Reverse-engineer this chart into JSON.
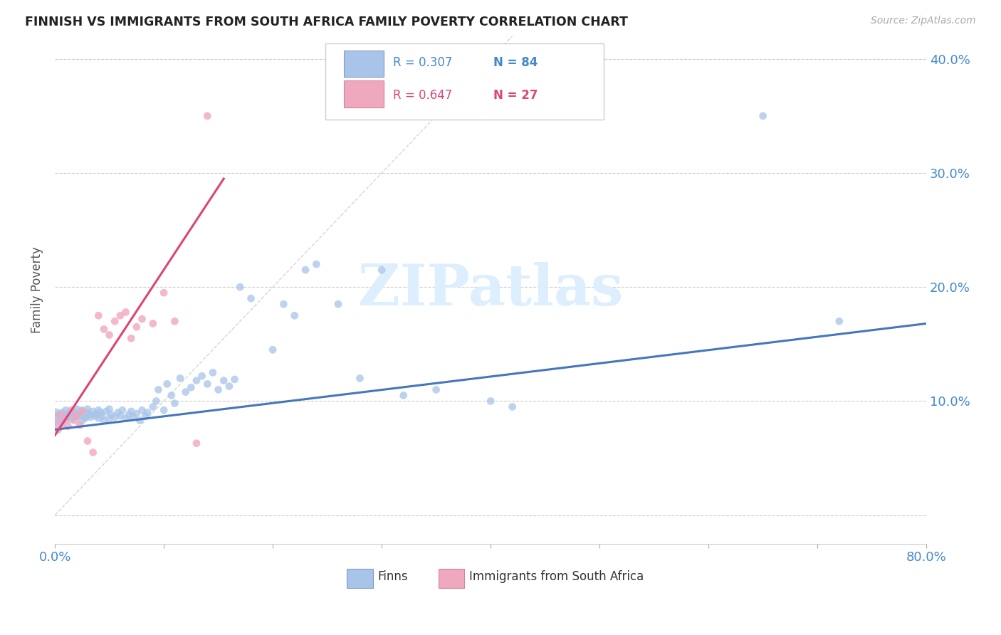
{
  "title": "FINNISH VS IMMIGRANTS FROM SOUTH AFRICA FAMILY POVERTY CORRELATION CHART",
  "source": "Source: ZipAtlas.com",
  "ylabel": "Family Poverty",
  "xlim": [
    0.0,
    0.8
  ],
  "ylim": [
    -0.025,
    0.42
  ],
  "x_tick_pos": [
    0.0,
    0.1,
    0.2,
    0.3,
    0.4,
    0.5,
    0.6,
    0.7,
    0.8
  ],
  "x_tick_labels": [
    "0.0%",
    "",
    "",
    "",
    "",
    "",
    "",
    "",
    "80.0%"
  ],
  "y_tick_pos": [
    0.0,
    0.1,
    0.2,
    0.3,
    0.4
  ],
  "y_tick_labels": [
    "",
    "10.0%",
    "20.0%",
    "30.0%",
    "40.0%"
  ],
  "finns_color": "#a8c4e8",
  "immigrants_color": "#f0a8be",
  "finns_line_color": "#4477bb",
  "immigrants_line_color": "#dd4477",
  "diagonal_color": "#cccccc",
  "watermark": "ZIPatlas",
  "background_color": "#ffffff",
  "finn_r": 0.307,
  "finn_n": 84,
  "imm_r": 0.647,
  "imm_n": 27,
  "legend_finn_text": "R = 0.307   N = 84",
  "legend_imm_text": "R = 0.647   N = 27",
  "legend_r_color": "#4477bb",
  "legend_n_color": "#dd4477",
  "finn_line_start_x": 0.0,
  "finn_line_start_y": 0.075,
  "finn_line_end_x": 0.8,
  "finn_line_end_y": 0.168,
  "imm_line_start_x": 0.0,
  "imm_line_start_y": 0.07,
  "imm_line_end_x": 0.155,
  "imm_line_end_y": 0.295
}
